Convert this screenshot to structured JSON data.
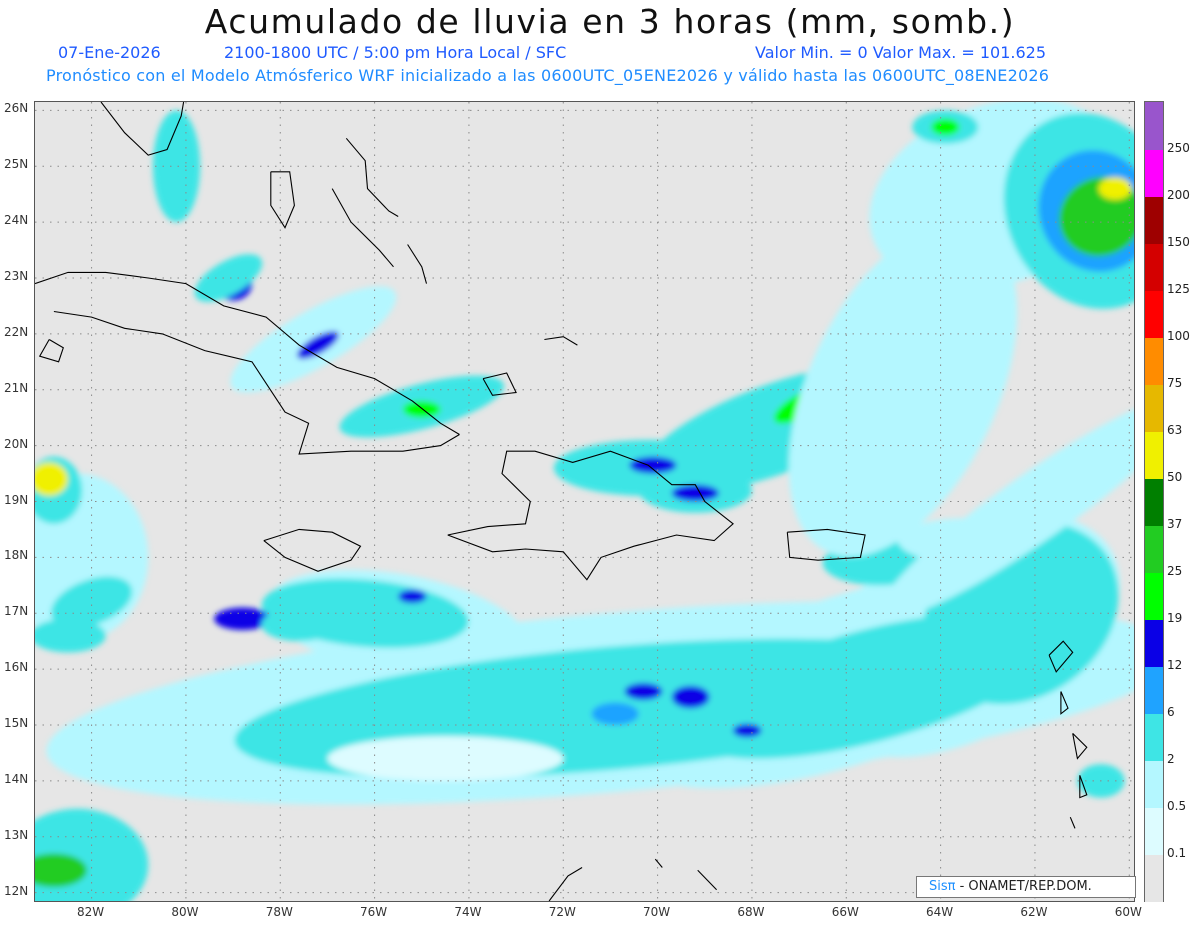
{
  "header": {
    "title": "Acumulado de lluvia en 3 horas (mm, somb.)",
    "date": "07-Ene-2026",
    "period": "2100-1800 UTC / 5:00 pm Hora Local / SFC",
    "stats": "Valor Min. = 0  Valor Max. = 101.625",
    "model_line": "Pronóstico con el Modelo Atmósferico WRF inicializado a las 0600UTC_05ENE2026 y válido hasta las  0600UTC_08ENE2026"
  },
  "map": {
    "region": "Caribe",
    "lon_range": [
      -83.2,
      -59.9
    ],
    "lat_range": [
      11.85,
      26.15
    ],
    "lat_labels": [
      "26N",
      "25N",
      "24N",
      "23N",
      "22N",
      "21N",
      "20N",
      "19N",
      "18N",
      "17N",
      "16N",
      "15N",
      "14N",
      "13N",
      "12N"
    ],
    "lon_labels": [
      "82W",
      "80W",
      "78W",
      "76W",
      "74W",
      "72W",
      "70W",
      "68W",
      "66W",
      "64W",
      "62W",
      "60W"
    ],
    "gridlines": true
  },
  "colorbar": {
    "labels": [
      "0.1",
      "0.5",
      "2",
      "6",
      "12",
      "19",
      "25",
      "37",
      "50",
      "63",
      "75",
      "100",
      "125",
      "150",
      "200",
      "250"
    ],
    "colors": [
      "#e6e6e6",
      "#ddfcff",
      "#b4f7ff",
      "#3ee5e5",
      "#1fa3ff",
      "#0a00e6",
      "#00ff00",
      "#22cc22",
      "#007f00",
      "#f0f000",
      "#e6b800",
      "#ff8c00",
      "#ff0000",
      "#d40000",
      "#9e0000",
      "#ff00ff",
      "#9955cc"
    ]
  },
  "credit": {
    "brand": "Sisπ",
    "text": "- ONAMET/REP.DOM."
  },
  "colors": {
    "background": "#e6e6e6",
    "coast": "#000000",
    "title_blue": "#1f5bff"
  }
}
